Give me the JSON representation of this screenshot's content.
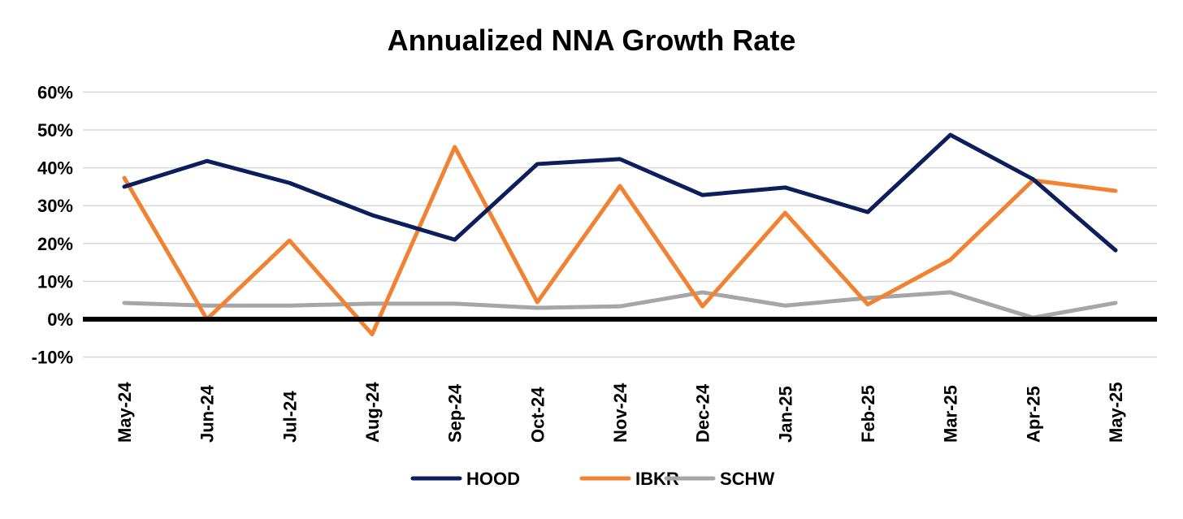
{
  "chart_data": {
    "type": "line",
    "title": "Annualized NNA Growth Rate",
    "xlabel": "",
    "ylabel": "",
    "categories": [
      "May-24",
      "Jun-24",
      "Jul-24",
      "Aug-24",
      "Sep-24",
      "Oct-24",
      "Nov-24",
      "Dec-24",
      "Jan-25",
      "Feb-25",
      "Mar-25",
      "Apr-25",
      "May-25"
    ],
    "ylim": [
      -10,
      60
    ],
    "yticks": [
      -10,
      0,
      10,
      20,
      30,
      40,
      50,
      60
    ],
    "ytick_labels": [
      "-10%",
      "0%",
      "10%",
      "20%",
      "30%",
      "40%",
      "50%",
      "60%"
    ],
    "grid": true,
    "legend_position": "bottom",
    "series": [
      {
        "name": "HOOD",
        "color": "#0c1f5c",
        "values": [
          35.0,
          41.8,
          36.0,
          27.5,
          21.0,
          41.0,
          42.3,
          32.8,
          34.8,
          28.3,
          48.7,
          37.0,
          18.2
        ]
      },
      {
        "name": "IBKR",
        "color": "#f08232",
        "values": [
          37.3,
          0.0,
          20.8,
          -4.0,
          45.5,
          4.5,
          35.2,
          3.4,
          28.1,
          3.9,
          15.7,
          36.7,
          33.9
        ]
      },
      {
        "name": "SCHW",
        "color": "#a6a6a6",
        "values": [
          4.3,
          3.6,
          3.6,
          4.1,
          4.1,
          3.0,
          3.4,
          7.1,
          3.6,
          5.6,
          7.1,
          0.4,
          4.3
        ]
      }
    ]
  }
}
